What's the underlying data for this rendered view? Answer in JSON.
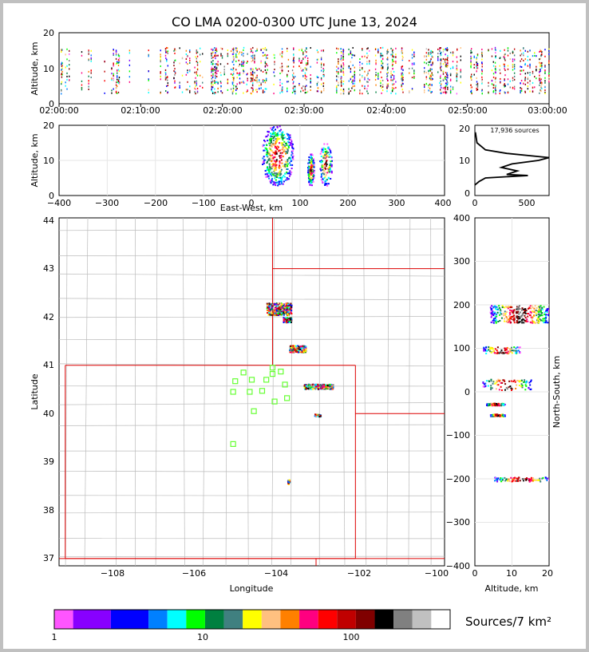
{
  "title": "CO LMA 0200-0300 UTC June 13, 2024",
  "time_height": {
    "ylabel": "Altitude, km",
    "yticks": [
      "0",
      "10",
      "20"
    ],
    "xticks": [
      "02:00:00",
      "02:10:00",
      "02:20:00",
      "02:30:00",
      "02:40:00",
      "02:50:00",
      "03:00:00"
    ]
  },
  "ew_panel": {
    "ylabel": "Altitude, km",
    "xlabel": "East-West, km",
    "yticks": [
      "0",
      "10",
      "20"
    ],
    "xticks": [
      "−400",
      "−300",
      "−200",
      "−100",
      "0",
      "100",
      "200",
      "300",
      "400"
    ]
  },
  "histogram": {
    "annotation": "17,936 sources",
    "xticks": [
      "0",
      "500"
    ],
    "yticks": [
      "0",
      "10",
      "20"
    ]
  },
  "map_panel": {
    "xlabel": "Longitude",
    "ylabel": "Latitude",
    "xticks": [
      "−108",
      "−106",
      "−104",
      "−102",
      "−100"
    ],
    "yticks": [
      "37",
      "38",
      "39",
      "40",
      "41",
      "42",
      "43",
      "44"
    ]
  },
  "ns_panel": {
    "xlabel": "Altitude, km",
    "ylabel": "North-South, km",
    "xticks": [
      "0",
      "10",
      "20"
    ],
    "yticks": [
      "−400",
      "−300",
      "−200",
      "−100",
      "0",
      "100",
      "200",
      "300",
      "400"
    ]
  },
  "colorbar": {
    "label": "Sources/7 km²",
    "ticks": [
      "1",
      "10",
      "100"
    ],
    "colors": [
      "#ff55ff",
      "#8800ff",
      "#0000ff",
      "#0080ff",
      "#00ffff",
      "#00ff00",
      "#008040",
      "#408080",
      "#ffff00",
      "#ffc080",
      "#ff8000",
      "#ff0080",
      "#ff0000",
      "#c00000",
      "#800000",
      "#000000",
      "#808080",
      "#c0c0c0",
      "#ffffff"
    ]
  },
  "chart_data": [
    {
      "type": "scatter",
      "panel": "time-height",
      "ylabel": "Altitude, km",
      "x_range": [
        "02:00:00",
        "03:00:00"
      ],
      "ylim": [
        0,
        20
      ],
      "source_altitude_range_km": [
        3,
        16
      ]
    },
    {
      "type": "scatter",
      "panel": "east-west-altitude",
      "xlabel": "East-West, km",
      "ylabel": "Altitude, km",
      "xlim": [
        -400,
        400
      ],
      "ylim": [
        0,
        20
      ],
      "clusters": [
        {
          "x": [
            20,
            85
          ],
          "y": [
            3,
            20
          ]
        },
        {
          "x": [
            115,
            128
          ],
          "y": [
            3,
            12
          ]
        },
        {
          "x": [
            140,
            165
          ],
          "y": [
            3,
            15
          ]
        }
      ]
    },
    {
      "type": "line",
      "panel": "altitude-histogram",
      "annotation": "17,936 sources",
      "xlim": [
        0,
        700
      ],
      "ylim": [
        0,
        20
      ],
      "points": [
        [
          0,
          3
        ],
        [
          40,
          4
        ],
        [
          100,
          5
        ],
        [
          500,
          5.7
        ],
        [
          300,
          6
        ],
        [
          400,
          7
        ],
        [
          250,
          8
        ],
        [
          350,
          9
        ],
        [
          600,
          10
        ],
        [
          700,
          10.8
        ],
        [
          300,
          12
        ],
        [
          100,
          13
        ],
        [
          20,
          15
        ],
        [
          5,
          18
        ]
      ]
    },
    {
      "type": "scatter",
      "panel": "map",
      "xlabel": "Longitude",
      "ylabel": "Latitude",
      "xlim": [
        -109.2,
        -99.9
      ],
      "ylim": [
        36.85,
        44.05
      ],
      "sensor_stations": [
        [
          -105.0,
          40.45
        ],
        [
          -104.95,
          40.67
        ],
        [
          -104.75,
          40.85
        ],
        [
          -104.6,
          40.45
        ],
        [
          -104.55,
          40.7
        ],
        [
          -104.5,
          40.05
        ],
        [
          -104.3,
          40.47
        ],
        [
          -104.2,
          40.7
        ],
        [
          -104.05,
          40.95
        ],
        [
          -104.05,
          40.82
        ],
        [
          -104.0,
          40.25
        ],
        [
          -103.85,
          40.87
        ],
        [
          -103.75,
          40.6
        ],
        [
          -103.7,
          40.32
        ],
        [
          -105.0,
          39.37
        ]
      ],
      "source_clusters": [
        {
          "lon": [
            -104.2,
            -103.6
          ],
          "lat": [
            42.05,
            42.3
          ]
        },
        {
          "lon": [
            -103.8,
            -103.6
          ],
          "lat": [
            41.9,
            42.0
          ]
        },
        {
          "lon": [
            -103.65,
            -103.25
          ],
          "lat": [
            41.28,
            41.42
          ]
        },
        {
          "lon": [
            -103.3,
            -102.6
          ],
          "lat": [
            40.52,
            40.62
          ]
        },
        {
          "lon": [
            -103.05,
            -102.9
          ],
          "lat": [
            39.95,
            40.0
          ]
        },
        {
          "lon": [
            -103.7,
            -103.65
          ],
          "lat": [
            38.55,
            38.65
          ]
        }
      ]
    },
    {
      "type": "scatter",
      "panel": "north-south-altitude",
      "xlabel": "Altitude, km",
      "ylabel": "North-South, km",
      "xlim": [
        0,
        20
      ],
      "ylim": [
        -400,
        400
      ],
      "bands": [
        {
          "y": [
            160,
            200
          ],
          "x": [
            4,
            20
          ]
        },
        {
          "y": [
            90,
            105
          ],
          "x": [
            2,
            12
          ]
        },
        {
          "y": [
            5,
            30
          ],
          "x": [
            2,
            15
          ]
        },
        {
          "y": [
            -30,
            -25
          ],
          "x": [
            3,
            8
          ]
        },
        {
          "y": [
            -55,
            -50
          ],
          "x": [
            4,
            8
          ]
        },
        {
          "y": [
            -205,
            -195
          ],
          "x": [
            5,
            20
          ]
        }
      ]
    }
  ]
}
